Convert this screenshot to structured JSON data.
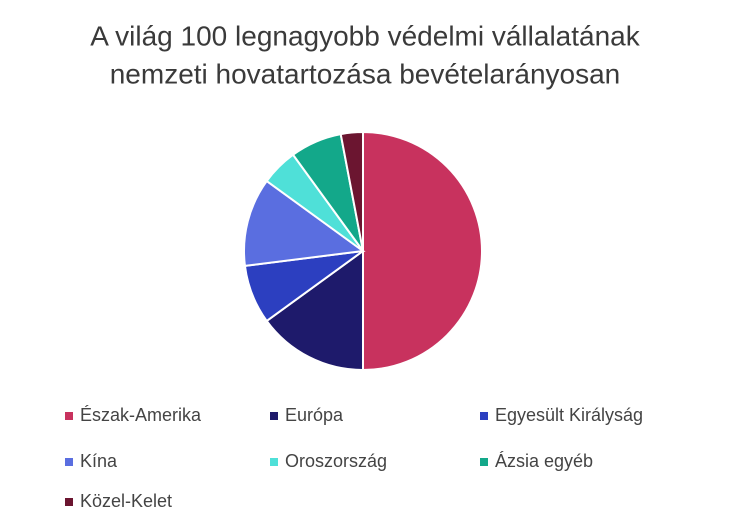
{
  "chart_data": {
    "type": "pie",
    "title": [
      "A világ 100 legnagyobb védelmi vállalatának",
      "nemzeti hovatartozása bevételarányosan"
    ],
    "categories": [
      "Észak-Amerika",
      "Európa",
      "Egyesült Királyság",
      "Kína",
      "Oroszország",
      "Ázsia egyéb",
      "Közel-Kelet"
    ],
    "values": [
      50,
      15,
      8,
      12,
      5,
      7,
      3
    ],
    "colors": [
      "#c8325e",
      "#1e1a6b",
      "#2c3fc0",
      "#5a6ee0",
      "#4fe0d8",
      "#13a88a",
      "#6b1530"
    ],
    "legend": "bottom"
  }
}
